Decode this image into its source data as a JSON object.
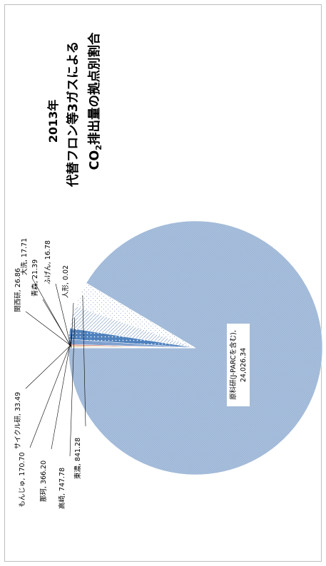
{
  "chart_data": {
    "type": "pie",
    "title_line1": "2013年",
    "title_line2": "代替フロン等3ガスによる",
    "title_line3_pre": "CO",
    "title_line3_sub": "2",
    "title_line3_post": "排出量の拠点別割合",
    "slices": [
      {
        "name": "原科研(J-PARCを含む)",
        "value": 24026.34,
        "value_label": "24,026.34",
        "color": "#a8bfdc"
      },
      {
        "name": "東濃",
        "value": 841.28,
        "value_label": "841.28",
        "color": "#ffffff"
      },
      {
        "name": "高崎",
        "value": 747.78,
        "value_label": "747.78",
        "color": "#ffffff"
      },
      {
        "name": "那珂",
        "value": 366.2,
        "value_label": "366.20",
        "color": "#4f81bd"
      },
      {
        "name": "もんじゅ",
        "value": 170.7,
        "value_label": "170.70",
        "color": "#7fa1cf"
      },
      {
        "name": "サイクル研",
        "value": 33.49,
        "value_label": "33.49",
        "color": "#c0504d"
      },
      {
        "name": "関西研",
        "value": 26.86,
        "value_label": "26.86",
        "color": "#d8a060"
      },
      {
        "name": "青森",
        "value": 21.39,
        "value_label": "21.39",
        "color": "#e3c478"
      },
      {
        "name": "大洗",
        "value": 17.71,
        "value_label": "17.71",
        "color": "#9bbb59"
      },
      {
        "name": "ふげん",
        "value": 16.78,
        "value_label": "16.78",
        "color": "#8064a2"
      },
      {
        "name": "人形",
        "value": 0.02,
        "value_label": "0.02",
        "color": "#4bacc6"
      }
    ],
    "legend": "none",
    "label_format": "name, value"
  }
}
